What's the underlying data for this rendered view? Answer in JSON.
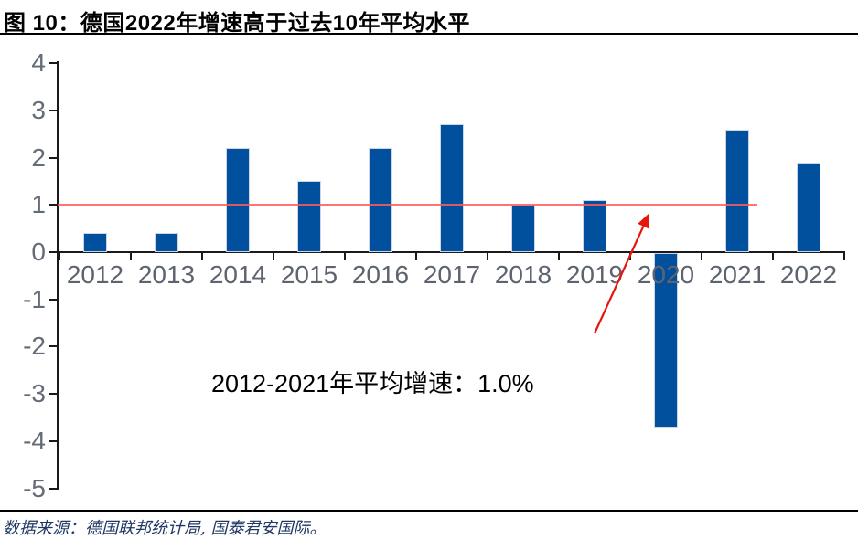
{
  "header": {
    "title": "图 10：德国2022年增速高于过去10年平均水平"
  },
  "footer": {
    "source": "数据来源：德国联邦统计局, 国泰君安国际。"
  },
  "chart_data": {
    "type": "bar",
    "title": "德国2022年增速高于过去10年平均水平",
    "categories": [
      "2012",
      "2013",
      "2014",
      "2015",
      "2016",
      "2017",
      "2018",
      "2019",
      "2020",
      "2021",
      "2022"
    ],
    "values": [
      0.4,
      0.4,
      2.2,
      1.5,
      2.2,
      2.7,
      1.0,
      1.1,
      -3.7,
      2.6,
      1.9
    ],
    "unit": "%",
    "xlabel": "",
    "ylabel": "",
    "ylim": [
      -5,
      4
    ],
    "ytick_step": 1,
    "yticks": [
      4,
      3,
      2,
      1,
      0,
      -1,
      -2,
      -3,
      -4,
      -5
    ],
    "grid": false,
    "legend_position": "none",
    "average_line": {
      "value": 1.0,
      "label": "2012-2021年平均增速：1.0%",
      "span_start_category": "2012",
      "span_end_category": "2021"
    },
    "colors": {
      "bar": "#00509e",
      "average_line": "#ff5a5a",
      "arrow": "#e8140e",
      "axis": "#1a1a1a",
      "y_tick_label": "#646c78",
      "x_tick_label": "#5d6470",
      "annotation_text": "#000000",
      "source_text": "#1f3864"
    }
  }
}
